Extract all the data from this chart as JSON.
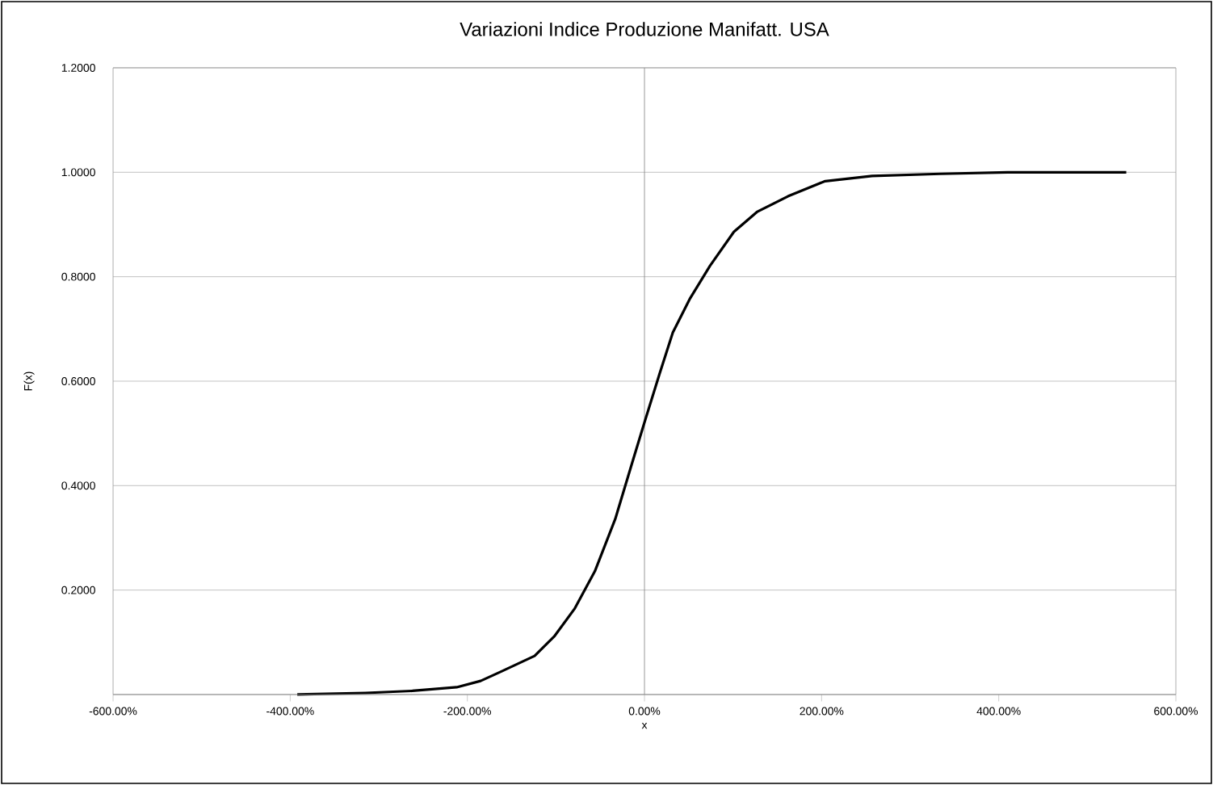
{
  "chart_data": {
    "type": "line",
    "title": "Variazioni Indice Produzione Manifatt. USA",
    "xlabel": "x",
    "ylabel": "F(x)",
    "x": [
      -392,
      -315,
      -262,
      -212,
      -185,
      -163,
      -124,
      -102,
      -79,
      -56,
      -33,
      -14,
      0,
      17,
      32,
      51,
      74,
      101,
      127,
      162,
      204,
      257,
      334,
      410,
      544
    ],
    "series": [
      {
        "color": "#000000",
        "values": [
          0,
          0.003,
          0.007,
          0.014,
          0.026,
          0.043,
          0.074,
          0.111,
          0.164,
          0.236,
          0.336,
          0.443,
          0.521,
          0.614,
          0.693,
          0.757,
          0.821,
          0.886,
          0.924,
          0.954,
          0.983,
          0.993,
          0.997,
          1.0,
          1.0
        ]
      }
    ],
    "xlim": [
      -600,
      600
    ],
    "xticks": [
      {
        "value": -600,
        "label": "-600.00%"
      },
      {
        "value": -400,
        "label": "-400.00%"
      },
      {
        "value": -200,
        "label": "-200.00%"
      },
      {
        "value": 0,
        "label": "0.00%"
      },
      {
        "value": 200,
        "label": "200.00%"
      },
      {
        "value": 400,
        "label": "400.00%"
      },
      {
        "value": 600,
        "label": "600.00%"
      }
    ],
    "ylim": [
      0,
      1.2
    ],
    "yticks": [
      {
        "value": 0.2,
        "label": "0.2000"
      },
      {
        "value": 0.4,
        "label": "0.4000"
      },
      {
        "value": 0.6,
        "label": "0.6000"
      },
      {
        "value": 0.8,
        "label": "0.8000"
      },
      {
        "value": 1.0,
        "label": "1.0000"
      },
      {
        "value": 1.2,
        "label": "1.2000"
      }
    ],
    "grid": "y",
    "marker": "none",
    "line_style": "solid"
  }
}
